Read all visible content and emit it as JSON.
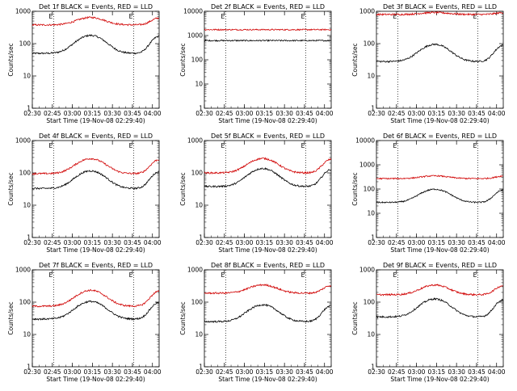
{
  "chart_data": [
    {
      "type": "line",
      "title": "Det 1f BLACK = Events, RED = LLD",
      "xlabel": "Start Time (19-Nov-08 02:29:40)",
      "ylabel": "Counts/sec",
      "ylog": true,
      "ylim": [
        1,
        1000
      ],
      "yticks": [
        "1",
        "10",
        "100",
        "1000"
      ],
      "xticks": [
        "02:30",
        "02:45",
        "03:00",
        "03:15",
        "03:30",
        "03:45",
        "04:00"
      ],
      "xlim": [
        "02:30",
        "04:05"
      ],
      "markers": [
        {
          "time": "02:46",
          "label": "E"
        },
        {
          "time": "03:46",
          "label": "E"
        }
      ],
      "series": [
        {
          "color": "#000000",
          "base": 50,
          "amp": 3.6
        },
        {
          "color": "#d00000",
          "base": 380,
          "amp": 1.7
        }
      ]
    },
    {
      "type": "line",
      "title": "Det 2f BLACK = Events, RED = LLD",
      "xlabel": "Start Time (19-Nov-08 02:29:40)",
      "ylabel": "Counts/sec",
      "ylog": true,
      "ylim": [
        1,
        10000
      ],
      "yticks": [
        "1",
        "10",
        "100",
        "1000",
        "10000"
      ],
      "xticks": [
        "02:30",
        "02:45",
        "03:00",
        "03:15",
        "03:30",
        "03:45",
        "04:00"
      ],
      "xlim": [
        "02:30",
        "04:05"
      ],
      "markers": [
        {
          "time": "02:46",
          "label": "E"
        },
        {
          "time": "03:46",
          "label": "E"
        }
      ],
      "series": [
        {
          "color": "#000000",
          "base": 620,
          "amp": 1.0
        },
        {
          "color": "#d00000",
          "base": 1750,
          "amp": 1.0
        }
      ]
    },
    {
      "type": "line",
      "title": "Det 3f BLACK = Events, RED = LLD",
      "xlabel": "Start Time (19-Nov-08 02:29:40)",
      "ylabel": "Counts/sec",
      "ylog": true,
      "ylim": [
        1,
        1000
      ],
      "yticks": [
        "1",
        "10",
        "100",
        "1000"
      ],
      "xticks": [
        "02:30",
        "02:45",
        "03:00",
        "03:15",
        "03:30",
        "03:45",
        "04:00"
      ],
      "xlim": [
        "02:30",
        "04:05"
      ],
      "markers": [
        {
          "time": "02:46",
          "label": "E"
        },
        {
          "time": "03:46",
          "label": "E"
        }
      ],
      "series": [
        {
          "color": "#000000",
          "base": 28,
          "amp": 3.4
        },
        {
          "color": "#d00000",
          "base": 800,
          "amp": 1.15
        }
      ]
    },
    {
      "type": "line",
      "title": "Det 4f BLACK = Events, RED = LLD",
      "xlabel": "Start Time (19-Nov-08 02:29:40)",
      "ylabel": "Counts/sec",
      "ylog": true,
      "ylim": [
        1,
        1000
      ],
      "yticks": [
        "1",
        "10",
        "100",
        "1000"
      ],
      "xticks": [
        "02:30",
        "02:45",
        "03:00",
        "03:15",
        "03:30",
        "03:45",
        "04:00"
      ],
      "xlim": [
        "02:30",
        "04:05"
      ],
      "markers": [
        {
          "time": "02:46",
          "label": "E"
        },
        {
          "time": "03:46",
          "label": "E"
        }
      ],
      "series": [
        {
          "color": "#000000",
          "base": 33,
          "amp": 3.5
        },
        {
          "color": "#d00000",
          "base": 95,
          "amp": 2.9
        }
      ]
    },
    {
      "type": "line",
      "title": "Det 5f BLACK = Events, RED = LLD",
      "xlabel": "Start Time (19-Nov-08 02:29:40)",
      "ylabel": "Counts/sec",
      "ylog": true,
      "ylim": [
        1,
        1000
      ],
      "yticks": [
        "1",
        "10",
        "100",
        "1000"
      ],
      "xticks": [
        "02:30",
        "02:45",
        "03:00",
        "03:15",
        "03:30",
        "03:45",
        "04:00"
      ],
      "xlim": [
        "02:30",
        "04:05"
      ],
      "markers": [
        {
          "time": "02:46",
          "label": "E"
        },
        {
          "time": "03:46",
          "label": "E"
        }
      ],
      "series": [
        {
          "color": "#000000",
          "base": 38,
          "amp": 3.6
        },
        {
          "color": "#d00000",
          "base": 100,
          "amp": 2.8
        }
      ]
    },
    {
      "type": "line",
      "title": "Det 6f BLACK = Events, RED = LLD",
      "xlabel": "Start Time (19-Nov-08 02:29:40)",
      "ylabel": "Counts/sec",
      "ylog": true,
      "ylim": [
        1,
        10000
      ],
      "yticks": [
        "1",
        "10",
        "100",
        "1000",
        "10000"
      ],
      "xticks": [
        "02:30",
        "02:45",
        "03:00",
        "03:15",
        "03:30",
        "03:45",
        "04:00"
      ],
      "xlim": [
        "02:30",
        "04:05"
      ],
      "markers": [
        {
          "time": "02:46",
          "label": "E"
        },
        {
          "time": "03:46",
          "label": "E"
        }
      ],
      "series": [
        {
          "color": "#000000",
          "base": 28,
          "amp": 3.5
        },
        {
          "color": "#d00000",
          "base": 270,
          "amp": 1.3
        }
      ]
    },
    {
      "type": "line",
      "title": "Det 7f BLACK = Events, RED = LLD",
      "xlabel": "Start Time (19-Nov-08 02:29:40)",
      "ylabel": "Counts/sec",
      "ylog": true,
      "ylim": [
        1,
        1000
      ],
      "yticks": [
        "1",
        "10",
        "100",
        "1000"
      ],
      "xticks": [
        "02:30",
        "02:45",
        "03:00",
        "03:15",
        "03:30",
        "03:45",
        "04:00"
      ],
      "xlim": [
        "02:30",
        "04:05"
      ],
      "markers": [
        {
          "time": "02:46",
          "label": "E"
        },
        {
          "time": "03:46",
          "label": "E"
        }
      ],
      "series": [
        {
          "color": "#000000",
          "base": 30,
          "amp": 3.5
        },
        {
          "color": "#d00000",
          "base": 75,
          "amp": 3.1
        }
      ]
    },
    {
      "type": "line",
      "title": "Det 8f BLACK = Events, RED = LLD",
      "xlabel": "Start Time (19-Nov-08 02:29:40)",
      "ylabel": "Counts/sec",
      "ylog": true,
      "ylim": [
        1,
        1000
      ],
      "yticks": [
        "1",
        "10",
        "100",
        "1000"
      ],
      "xticks": [
        "02:30",
        "02:45",
        "03:00",
        "03:15",
        "03:30",
        "03:45",
        "04:00"
      ],
      "xlim": [
        "02:30",
        "04:05"
      ],
      "markers": [
        {
          "time": "02:46",
          "label": "E"
        },
        {
          "time": "03:46",
          "label": "E"
        }
      ],
      "series": [
        {
          "color": "#000000",
          "base": 25,
          "amp": 3.3
        },
        {
          "color": "#d00000",
          "base": 190,
          "amp": 1.8
        }
      ]
    },
    {
      "type": "line",
      "title": "Det 9f BLACK = Events, RED = LLD",
      "xlabel": "Start Time (19-Nov-08 02:29:40)",
      "ylabel": "Counts/sec",
      "ylog": true,
      "ylim": [
        1,
        1000
      ],
      "yticks": [
        "1",
        "10",
        "100",
        "1000"
      ],
      "xticks": [
        "02:30",
        "02:45",
        "03:00",
        "03:15",
        "03:30",
        "03:45",
        "04:00"
      ],
      "xlim": [
        "02:30",
        "04:05"
      ],
      "markers": [
        {
          "time": "02:46",
          "label": "E"
        },
        {
          "time": "03:46",
          "label": "E"
        }
      ],
      "series": [
        {
          "color": "#000000",
          "base": 35,
          "amp": 3.6
        },
        {
          "color": "#d00000",
          "base": 170,
          "amp": 2.0
        }
      ]
    }
  ]
}
